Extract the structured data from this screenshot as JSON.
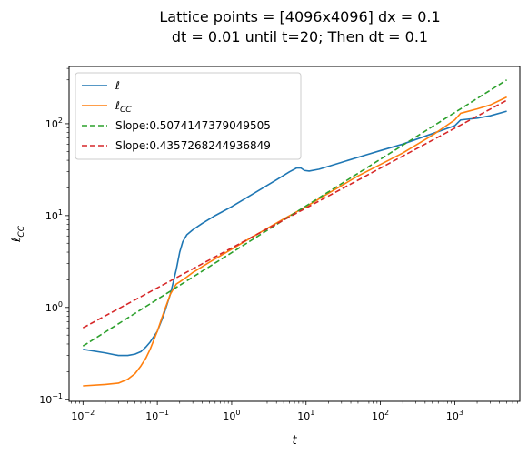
{
  "chart_data": {
    "type": "line",
    "title": "Lattice points = [4096x4096] dx = 0.1",
    "subtitle": "dt = 0.01 until t=20; Then dt = 0.1",
    "xlabel": "t",
    "ylabel": "ℓ",
    "ylabel_sub": "CC",
    "xscale": "log",
    "yscale": "log",
    "xlim": [
      0.0065,
      7500
    ],
    "ylim": [
      0.095,
      420
    ],
    "x_ticks": [
      {
        "base": "10",
        "exp": "−2",
        "value": 0.01
      },
      {
        "base": "10",
        "exp": "−1",
        "value": 0.1
      },
      {
        "base": "10",
        "exp": "0",
        "value": 1
      },
      {
        "base": "10",
        "exp": "1",
        "value": 10
      },
      {
        "base": "10",
        "exp": "2",
        "value": 100
      },
      {
        "base": "10",
        "exp": "3",
        "value": 1000
      }
    ],
    "y_ticks": [
      {
        "base": "10",
        "exp": "−1",
        "value": 0.1
      },
      {
        "base": "10",
        "exp": "0",
        "value": 1
      },
      {
        "base": "10",
        "exp": "1",
        "value": 10
      },
      {
        "base": "10",
        "exp": "2",
        "value": 100
      }
    ],
    "grid": false,
    "legend_position": "top-left",
    "series": [
      {
        "name": "ℓ",
        "color": "#1f77b4",
        "style": "solid",
        "x": [
          0.01,
          0.02,
          0.03,
          0.04,
          0.05,
          0.06,
          0.07,
          0.08,
          0.1,
          0.12,
          0.15,
          0.18,
          0.2,
          0.22,
          0.25,
          0.3,
          0.4,
          0.6,
          1,
          2,
          4,
          6,
          7.5,
          8.5,
          9.5,
          11,
          15,
          30,
          60,
          100,
          200,
          500,
          1000,
          1200,
          2000,
          3000,
          5000
        ],
        "y": [
          0.35,
          0.32,
          0.3,
          0.3,
          0.31,
          0.33,
          0.37,
          0.42,
          0.55,
          0.8,
          1.4,
          2.6,
          4.0,
          5.2,
          6.2,
          7.0,
          8.2,
          10.0,
          12.5,
          17.5,
          24.5,
          30.0,
          33.0,
          33.0,
          31.0,
          30.5,
          32.0,
          38.0,
          45.0,
          51.0,
          60.0,
          78.0,
          95.0,
          110.0,
          115.0,
          122.0,
          137.0
        ]
      },
      {
        "name": "ℓ",
        "name_sub": "CC",
        "color": "#ff7f0e",
        "style": "solid",
        "x": [
          0.01,
          0.02,
          0.03,
          0.04,
          0.05,
          0.06,
          0.07,
          0.08,
          0.1,
          0.12,
          0.15,
          0.18,
          0.2,
          0.25,
          0.3,
          0.5,
          1,
          2,
          5,
          10,
          20,
          50,
          100,
          200,
          500,
          1000,
          1200,
          2000,
          3000,
          5000
        ],
        "y": [
          0.14,
          0.145,
          0.15,
          0.165,
          0.19,
          0.23,
          0.28,
          0.35,
          0.55,
          0.85,
          1.4,
          1.8,
          1.9,
          2.15,
          2.4,
          3.1,
          4.3,
          6.0,
          9.2,
          12.5,
          17.5,
          27.0,
          36.0,
          48.0,
          75.0,
          110.0,
          130.0,
          145.0,
          160.0,
          195.0
        ]
      },
      {
        "name": "Slope:0.5074147379049505",
        "color": "#2ca02c",
        "style": "dashed",
        "x": [
          0.01,
          5000
        ],
        "y": [
          0.38,
          300.0
        ]
      },
      {
        "name": "Slope:0.4357268244936849",
        "color": "#d62728",
        "style": "dashed",
        "x": [
          0.01,
          5000
        ],
        "y": [
          0.6,
          180.0
        ]
      }
    ]
  }
}
